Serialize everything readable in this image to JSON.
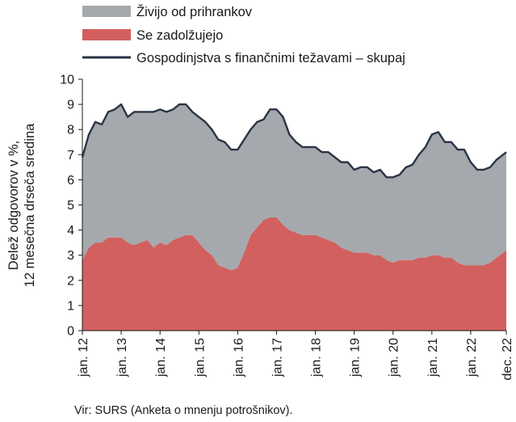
{
  "chart_data": {
    "type": "area",
    "title": "",
    "xlabel": "",
    "ylabel_lines": [
      "Delež odgovorov v %,",
      "12 mesečna drseča sredina"
    ],
    "ylim": [
      0,
      10
    ],
    "yticks": [
      0,
      1,
      2,
      3,
      4,
      5,
      6,
      7,
      8,
      9,
      10
    ],
    "xlim": [
      "2012-01",
      "2022-12"
    ],
    "x_tick_labels": [
      "jan. 12",
      "jan. 13",
      "jan. 14",
      "jan. 15",
      "jan. 16",
      "jan. 17",
      "jan. 18",
      "jan. 19",
      "jan. 20",
      "jan. 21",
      "jan. 22",
      "dec. 22"
    ],
    "x_tick_dates": [
      "2012-01",
      "2013-01",
      "2014-01",
      "2015-01",
      "2016-01",
      "2017-01",
      "2018-01",
      "2019-01",
      "2020-01",
      "2021-01",
      "2022-01",
      "2022-12"
    ],
    "grid": false,
    "legend_position": "top-left",
    "source": "Vir: SURS (Anketa o mnenju potrošnikov).",
    "series": [
      {
        "name": "Živijo od prihrankov",
        "kind": "stacked-area",
        "color": "#a5a9ae",
        "points": [
          [
            "2012-01",
            4.1
          ],
          [
            "2012-03",
            4.5
          ],
          [
            "2012-05",
            4.8
          ],
          [
            "2012-07",
            4.7
          ],
          [
            "2012-09",
            5.0
          ],
          [
            "2012-11",
            5.1
          ],
          [
            "2013-01",
            5.3
          ],
          [
            "2013-03",
            5.0
          ],
          [
            "2013-05",
            5.3
          ],
          [
            "2013-07",
            5.2
          ],
          [
            "2013-09",
            5.1
          ],
          [
            "2013-11",
            5.4
          ],
          [
            "2014-01",
            5.3
          ],
          [
            "2014-03",
            5.3
          ],
          [
            "2014-05",
            5.2
          ],
          [
            "2014-07",
            5.3
          ],
          [
            "2014-09",
            5.2
          ],
          [
            "2014-11",
            4.9
          ],
          [
            "2015-01",
            5.0
          ],
          [
            "2015-03",
            5.1
          ],
          [
            "2015-05",
            5.0
          ],
          [
            "2015-07",
            5.0
          ],
          [
            "2015-09",
            5.0
          ],
          [
            "2015-11",
            4.8
          ],
          [
            "2016-01",
            4.7
          ],
          [
            "2016-03",
            4.5
          ],
          [
            "2016-05",
            4.2
          ],
          [
            "2016-07",
            4.2
          ],
          [
            "2016-09",
            4.0
          ],
          [
            "2016-11",
            4.3
          ],
          [
            "2017-01",
            4.3
          ],
          [
            "2017-03",
            4.3
          ],
          [
            "2017-05",
            3.8
          ],
          [
            "2017-07",
            3.6
          ],
          [
            "2017-09",
            3.5
          ],
          [
            "2017-11",
            3.5
          ],
          [
            "2018-01",
            3.5
          ],
          [
            "2018-03",
            3.4
          ],
          [
            "2018-05",
            3.5
          ],
          [
            "2018-07",
            3.4
          ],
          [
            "2018-09",
            3.4
          ],
          [
            "2018-11",
            3.5
          ],
          [
            "2019-01",
            3.3
          ],
          [
            "2019-03",
            3.4
          ],
          [
            "2019-05",
            3.4
          ],
          [
            "2019-07",
            3.3
          ],
          [
            "2019-09",
            3.4
          ],
          [
            "2019-11",
            3.3
          ],
          [
            "2020-01",
            3.4
          ],
          [
            "2020-03",
            3.4
          ],
          [
            "2020-05",
            3.7
          ],
          [
            "2020-07",
            3.8
          ],
          [
            "2020-09",
            4.1
          ],
          [
            "2020-11",
            4.4
          ],
          [
            "2021-01",
            4.8
          ],
          [
            "2021-03",
            4.9
          ],
          [
            "2021-05",
            4.6
          ],
          [
            "2021-07",
            4.6
          ],
          [
            "2021-09",
            4.5
          ],
          [
            "2021-11",
            4.6
          ],
          [
            "2022-01",
            4.1
          ],
          [
            "2022-03",
            3.8
          ],
          [
            "2022-05",
            3.8
          ],
          [
            "2022-07",
            3.8
          ],
          [
            "2022-09",
            3.9
          ],
          [
            "2022-11",
            3.9
          ],
          [
            "2022-12",
            3.9
          ]
        ]
      },
      {
        "name": "Se zadolžujejo",
        "kind": "stacked-area",
        "color": "#d2605f",
        "points": [
          [
            "2012-01",
            2.8
          ],
          [
            "2012-03",
            3.3
          ],
          [
            "2012-05",
            3.5
          ],
          [
            "2012-07",
            3.5
          ],
          [
            "2012-09",
            3.7
          ],
          [
            "2012-11",
            3.7
          ],
          [
            "2013-01",
            3.7
          ],
          [
            "2013-03",
            3.5
          ],
          [
            "2013-05",
            3.4
          ],
          [
            "2013-07",
            3.5
          ],
          [
            "2013-09",
            3.6
          ],
          [
            "2013-11",
            3.3
          ],
          [
            "2014-01",
            3.5
          ],
          [
            "2014-03",
            3.4
          ],
          [
            "2014-05",
            3.6
          ],
          [
            "2014-07",
            3.7
          ],
          [
            "2014-09",
            3.8
          ],
          [
            "2014-11",
            3.8
          ],
          [
            "2015-01",
            3.5
          ],
          [
            "2015-03",
            3.2
          ],
          [
            "2015-05",
            3.0
          ],
          [
            "2015-07",
            2.6
          ],
          [
            "2015-09",
            2.5
          ],
          [
            "2015-11",
            2.4
          ],
          [
            "2016-01",
            2.5
          ],
          [
            "2016-03",
            3.1
          ],
          [
            "2016-05",
            3.8
          ],
          [
            "2016-07",
            4.1
          ],
          [
            "2016-09",
            4.4
          ],
          [
            "2016-11",
            4.5
          ],
          [
            "2017-01",
            4.5
          ],
          [
            "2017-03",
            4.2
          ],
          [
            "2017-05",
            4.0
          ],
          [
            "2017-07",
            3.9
          ],
          [
            "2017-09",
            3.8
          ],
          [
            "2017-11",
            3.8
          ],
          [
            "2018-01",
            3.8
          ],
          [
            "2018-03",
            3.7
          ],
          [
            "2018-05",
            3.6
          ],
          [
            "2018-07",
            3.5
          ],
          [
            "2018-09",
            3.3
          ],
          [
            "2018-11",
            3.2
          ],
          [
            "2019-01",
            3.1
          ],
          [
            "2019-03",
            3.1
          ],
          [
            "2019-05",
            3.1
          ],
          [
            "2019-07",
            3.0
          ],
          [
            "2019-09",
            3.0
          ],
          [
            "2019-11",
            2.8
          ],
          [
            "2020-01",
            2.7
          ],
          [
            "2020-03",
            2.8
          ],
          [
            "2020-05",
            2.8
          ],
          [
            "2020-07",
            2.8
          ],
          [
            "2020-09",
            2.9
          ],
          [
            "2020-11",
            2.9
          ],
          [
            "2021-01",
            3.0
          ],
          [
            "2021-03",
            3.0
          ],
          [
            "2021-05",
            2.9
          ],
          [
            "2021-07",
            2.9
          ],
          [
            "2021-09",
            2.7
          ],
          [
            "2021-11",
            2.6
          ],
          [
            "2022-01",
            2.6
          ],
          [
            "2022-03",
            2.6
          ],
          [
            "2022-05",
            2.6
          ],
          [
            "2022-07",
            2.7
          ],
          [
            "2022-09",
            2.9
          ],
          [
            "2022-11",
            3.1
          ],
          [
            "2022-12",
            3.2
          ]
        ]
      },
      {
        "name": "Gospodinjstva s finančnimi težavami – skupaj",
        "kind": "line",
        "color": "#2a3446",
        "points": [
          [
            "2012-01",
            6.9
          ],
          [
            "2012-03",
            7.8
          ],
          [
            "2012-05",
            8.3
          ],
          [
            "2012-07",
            8.2
          ],
          [
            "2012-09",
            8.7
          ],
          [
            "2012-11",
            8.8
          ],
          [
            "2013-01",
            9.0
          ],
          [
            "2013-03",
            8.5
          ],
          [
            "2013-05",
            8.7
          ],
          [
            "2013-07",
            8.7
          ],
          [
            "2013-09",
            8.7
          ],
          [
            "2013-11",
            8.7
          ],
          [
            "2014-01",
            8.8
          ],
          [
            "2014-03",
            8.7
          ],
          [
            "2014-05",
            8.8
          ],
          [
            "2014-07",
            9.0
          ],
          [
            "2014-09",
            9.0
          ],
          [
            "2014-11",
            8.7
          ],
          [
            "2015-01",
            8.5
          ],
          [
            "2015-03",
            8.3
          ],
          [
            "2015-05",
            8.0
          ],
          [
            "2015-07",
            7.6
          ],
          [
            "2015-09",
            7.5
          ],
          [
            "2015-11",
            7.2
          ],
          [
            "2016-01",
            7.2
          ],
          [
            "2016-03",
            7.6
          ],
          [
            "2016-05",
            8.0
          ],
          [
            "2016-07",
            8.3
          ],
          [
            "2016-09",
            8.4
          ],
          [
            "2016-11",
            8.8
          ],
          [
            "2017-01",
            8.8
          ],
          [
            "2017-03",
            8.5
          ],
          [
            "2017-05",
            7.8
          ],
          [
            "2017-07",
            7.5
          ],
          [
            "2017-09",
            7.3
          ],
          [
            "2017-11",
            7.3
          ],
          [
            "2018-01",
            7.3
          ],
          [
            "2018-03",
            7.1
          ],
          [
            "2018-05",
            7.1
          ],
          [
            "2018-07",
            6.9
          ],
          [
            "2018-09",
            6.7
          ],
          [
            "2018-11",
            6.7
          ],
          [
            "2019-01",
            6.4
          ],
          [
            "2019-03",
            6.5
          ],
          [
            "2019-05",
            6.5
          ],
          [
            "2019-07",
            6.3
          ],
          [
            "2019-09",
            6.4
          ],
          [
            "2019-11",
            6.1
          ],
          [
            "2020-01",
            6.1
          ],
          [
            "2020-03",
            6.2
          ],
          [
            "2020-05",
            6.5
          ],
          [
            "2020-07",
            6.6
          ],
          [
            "2020-09",
            7.0
          ],
          [
            "2020-11",
            7.3
          ],
          [
            "2021-01",
            7.8
          ],
          [
            "2021-03",
            7.9
          ],
          [
            "2021-05",
            7.5
          ],
          [
            "2021-07",
            7.5
          ],
          [
            "2021-09",
            7.2
          ],
          [
            "2021-11",
            7.2
          ],
          [
            "2022-01",
            6.7
          ],
          [
            "2022-03",
            6.4
          ],
          [
            "2022-05",
            6.4
          ],
          [
            "2022-07",
            6.5
          ],
          [
            "2022-09",
            6.8
          ],
          [
            "2022-11",
            7.0
          ],
          [
            "2022-12",
            7.1
          ]
        ]
      }
    ]
  }
}
